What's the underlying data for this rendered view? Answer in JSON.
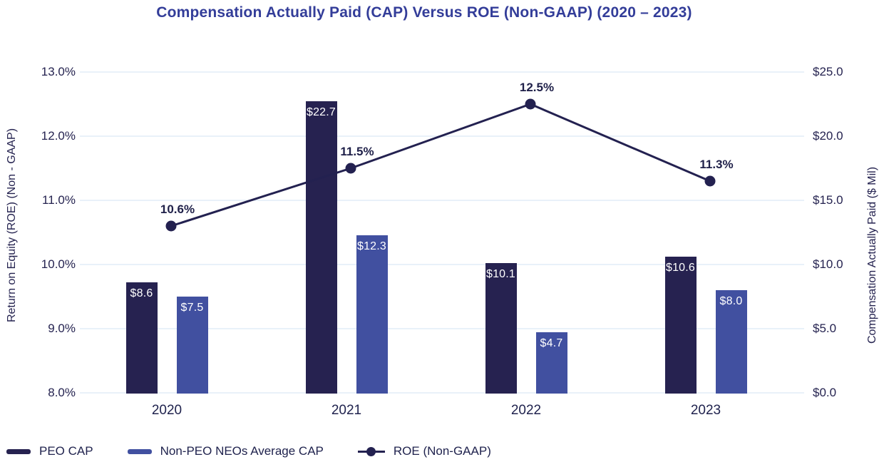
{
  "chart_data": {
    "type": "combo-bar-line",
    "title": "Compensation Actually Paid (CAP) Versus ROE (Non-GAAP) (2020 – 2023)",
    "categories": [
      "2020",
      "2021",
      "2022",
      "2023"
    ],
    "bar_series": [
      {
        "name": "PEO CAP",
        "color": "#262250",
        "values": [
          8.6,
          22.7,
          10.1,
          10.6
        ],
        "labels": [
          "$8.6",
          "$22.7",
          "$10.1",
          "$10.6"
        ]
      },
      {
        "name": "Non-PEO NEOs Average CAP",
        "color": "#4150A0",
        "values": [
          7.5,
          12.3,
          4.7,
          8.0
        ],
        "labels": [
          "$7.5",
          "$12.3",
          "$4.7",
          "$8.0"
        ]
      }
    ],
    "line_series": {
      "name": "ROE (Non-GAAP)",
      "color": "#232150",
      "values": [
        10.6,
        11.5,
        12.5,
        11.3
      ],
      "labels": [
        "10.6%",
        "11.5%",
        "12.5%",
        "11.3%"
      ]
    },
    "left_axis": {
      "title": "Return on Equity (ROE) (Non - GAAP)",
      "ticks": [
        "13.0%",
        "12.0%",
        "11.0%",
        "10.0%",
        "9.0%",
        "8.0%"
      ],
      "min": 8,
      "max": 13
    },
    "right_axis": {
      "title": "Compensation Actually Paid ($ Mil)",
      "ticks": [
        "$25.0",
        "$20.0",
        "$15.0",
        "$10.0",
        "$5.0",
        "$0.0"
      ],
      "min": 0,
      "max": 25
    },
    "grid": true,
    "legend_position": "bottom-left",
    "colors": {
      "title": "#333D99",
      "axis_text": "#252350",
      "grid": "#E9F1F9",
      "bar_label": "#FFFFFF",
      "point_label": "#1F2049"
    }
  }
}
